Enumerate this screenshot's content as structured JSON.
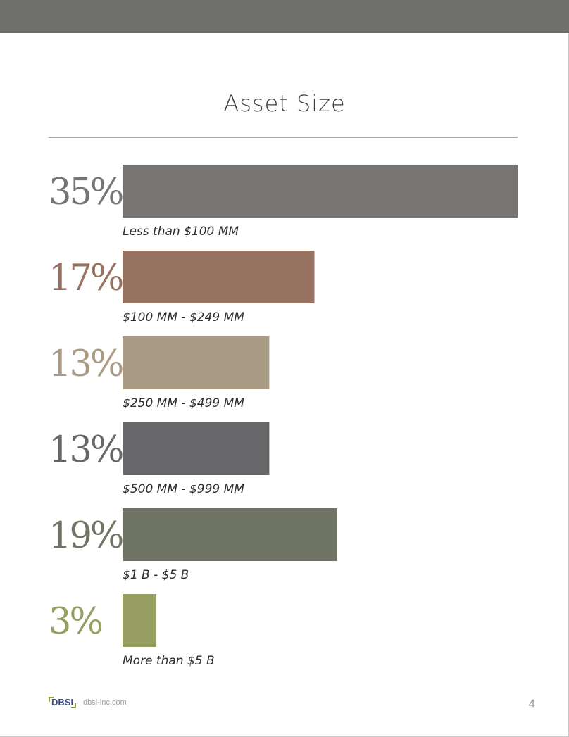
{
  "title": "Asset Size",
  "chart_data": {
    "type": "bar",
    "orientation": "horizontal",
    "title": "Asset Size",
    "unit": "%",
    "categories": [
      "Less than $100 MM",
      "$100 MM - $249 MM",
      "$250 MM - $499 MM",
      "$500 MM - $999 MM",
      "$1 B - $5 B",
      "More than $5 B"
    ],
    "values": [
      35,
      17,
      13,
      13,
      19,
      3
    ],
    "value_labels": [
      "35%",
      "17%",
      "13%",
      "13%",
      "19%",
      "3%"
    ],
    "colors": [
      "#767574",
      "#967361",
      "#a99b83",
      "#676769",
      "#6f7464",
      "#969e62"
    ],
    "xlim": [
      0,
      35
    ],
    "grid": false,
    "legend": "none"
  },
  "footer": {
    "logo_text": "DBSI",
    "url": "dbsi-inc.com",
    "page_number": "4"
  }
}
